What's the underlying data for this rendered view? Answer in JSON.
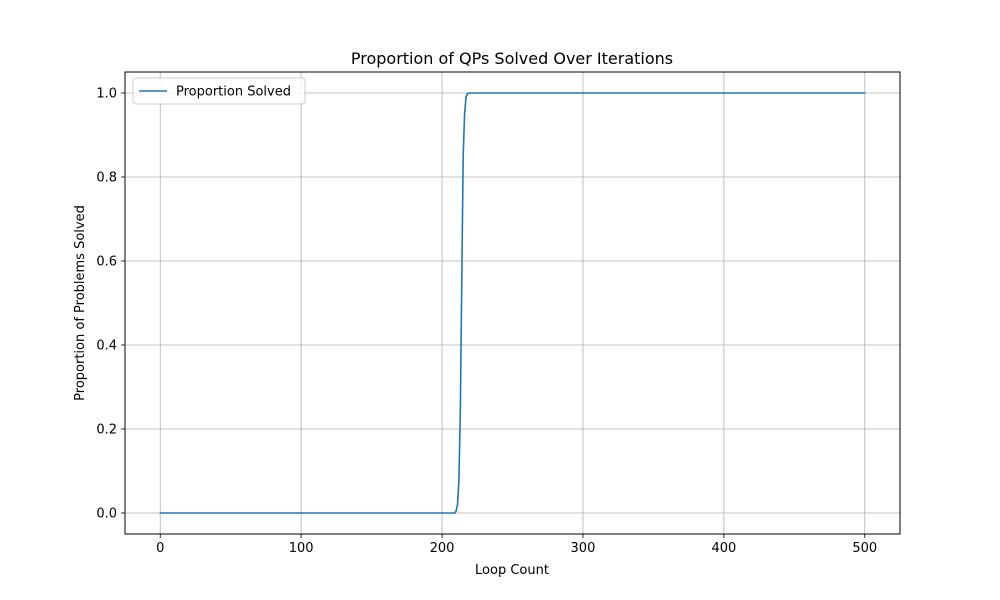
{
  "chart_data": {
    "type": "line",
    "title": "Proportion of QPs Solved Over Iterations",
    "xlabel": "Loop Count",
    "ylabel": "Proportion of Problems Solved",
    "xlim": [
      -25,
      525
    ],
    "ylim": [
      -0.05,
      1.05
    ],
    "xticks": [
      0,
      100,
      200,
      300,
      400,
      500
    ],
    "yticks": [
      0.0,
      0.2,
      0.4,
      0.6,
      0.8,
      1.0
    ],
    "xtick_labels": [
      "0",
      "100",
      "200",
      "300",
      "400",
      "500"
    ],
    "ytick_labels": [
      "0.0",
      "0.2",
      "0.4",
      "0.6",
      "0.8",
      "1.0"
    ],
    "grid": true,
    "legend_position": "top-left",
    "series": [
      {
        "name": "Proportion Solved",
        "color": "#1f77b4",
        "x": [
          0,
          100,
          200,
          209,
          210,
          211,
          212,
          213,
          214,
          215,
          216,
          217,
          218,
          219,
          220,
          300,
          400,
          500
        ],
        "y": [
          0.0,
          0.0,
          0.0,
          0.0,
          0.005,
          0.02,
          0.08,
          0.25,
          0.55,
          0.85,
          0.95,
          0.99,
          0.998,
          1.0,
          1.0,
          1.0,
          1.0,
          1.0
        ]
      }
    ]
  }
}
